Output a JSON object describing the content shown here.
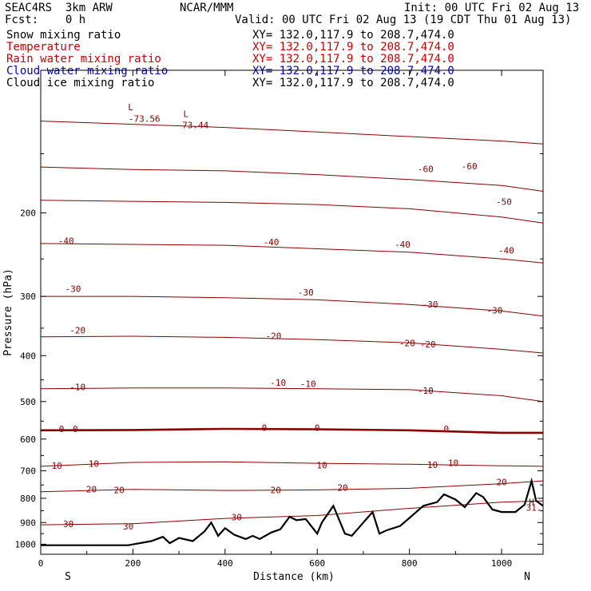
{
  "header": {
    "model": "SEAC4RS  3km ARW",
    "org": "NCAR/MMM",
    "init": "Init: 00 UTC Fri 02 Aug 13",
    "fcst": "Fcst:    0 h",
    "valid": "Valid: 00 UTC Fri 02 Aug 13 (19 CDT Thu 01 Aug 13)",
    "fields": [
      {
        "name": "Snow mixing ratio",
        "coords": "XY= 132.0,117.9 to 208.7,474.0",
        "color": "#000000"
      },
      {
        "name": "Temperature",
        "coords": "XY= 132.0,117.9 to 208.7,474.0",
        "color": "#cc0000"
      },
      {
        "name": "Rain water mixing ratio",
        "coords": "XY= 132.0,117.9 to 208.7,474.0",
        "color": "#cc0000"
      },
      {
        "name": "Cloud water mixing ratio",
        "coords": "XY= 132.0,117.9 to 208.7,474.0",
        "color": "#0000cc"
      },
      {
        "name": "Cloud ice mixing ratio",
        "coords": "XY= 132.0,117.9 to 208.7,474.0",
        "color": "#000000"
      }
    ]
  },
  "chart_data": {
    "type": "line",
    "xlabel": "Distance (km)",
    "ylabel": "Pressure (hPa)",
    "xlim": [
      0,
      1090
    ],
    "ylim": [
      1050,
      100
    ],
    "y_scale": "log",
    "x_ticks": [
      0,
      200,
      400,
      600,
      800,
      1000
    ],
    "y_ticks": [
      200,
      300,
      400,
      500,
      600,
      700,
      800,
      900,
      1000
    ],
    "x_end_labels": {
      "left": "S",
      "right": "N"
    },
    "line_color": "#8b0000",
    "isotherms": [
      {
        "value": -60,
        "x": [
          0,
          200,
          400,
          600,
          800,
          1000,
          1090
        ],
        "p": [
          160,
          162,
          163,
          166,
          170,
          175,
          180
        ]
      },
      {
        "value": -50,
        "x": [
          0,
          200,
          400,
          600,
          800,
          1000,
          1090
        ],
        "p": [
          188,
          189,
          190,
          192,
          196,
          204,
          210
        ]
      },
      {
        "value": -40,
        "x": [
          0,
          200,
          400,
          600,
          800,
          1000,
          1090
        ],
        "p": [
          232,
          233,
          234,
          238,
          242,
          250,
          255
        ]
      },
      {
        "value": -30,
        "x": [
          0,
          200,
          400,
          600,
          800,
          1000,
          1090
        ],
        "p": [
          300,
          300,
          302,
          305,
          312,
          322,
          330
        ]
      },
      {
        "value": -20,
        "x": [
          0,
          200,
          400,
          600,
          800,
          1000,
          1090
        ],
        "p": [
          365,
          364,
          366,
          370,
          376,
          388,
          395
        ]
      },
      {
        "value": -10,
        "x": [
          0,
          200,
          400,
          600,
          800,
          1000,
          1090
        ],
        "p": [
          470,
          468,
          468,
          470,
          472,
          486,
          500
        ]
      },
      {
        "value": 0,
        "x": [
          0,
          200,
          400,
          600,
          800,
          1000,
          1090
        ],
        "p": [
          575,
          574,
          571,
          572,
          575,
          582,
          582
        ]
      },
      {
        "value": 10,
        "x": [
          0,
          200,
          400,
          600,
          800,
          1000,
          1090
        ],
        "p": [
          685,
          672,
          670,
          675,
          678,
          683,
          685
        ]
      },
      {
        "value": 20,
        "x": [
          0,
          200,
          400,
          600,
          800,
          1000,
          1090
        ],
        "p": [
          775,
          766,
          770,
          768,
          762,
          745,
          735
        ]
      },
      {
        "value": 30,
        "x": [
          0,
          200,
          400,
          600,
          800,
          1000,
          1090
        ],
        "p": [
          910,
          905,
          882,
          870,
          840,
          815,
          810
        ]
      }
    ],
    "tropopause_level": {
      "p": 130,
      "x": [
        0,
        200,
        400,
        600,
        800,
        1000,
        1090
      ],
      "pp": [
        128,
        130,
        132,
        135,
        138,
        141,
        143
      ]
    },
    "terrain": {
      "x": [
        0,
        150,
        190,
        240,
        265,
        280,
        300,
        330,
        355,
        370,
        385,
        400,
        420,
        445,
        460,
        475,
        500,
        520,
        540,
        555,
        575,
        600,
        610,
        635,
        650,
        660,
        675,
        700,
        720,
        735,
        750,
        780,
        800,
        830,
        860,
        875,
        900,
        920,
        945,
        960,
        980,
        1000,
        1030,
        1050,
        1065,
        1075,
        1090
      ],
      "p": [
        1005,
        1005,
        1005,
        985,
        965,
        995,
        970,
        985,
        940,
        900,
        960,
        925,
        955,
        975,
        960,
        975,
        945,
        930,
        875,
        890,
        885,
        950,
        900,
        830,
        900,
        950,
        960,
        900,
        855,
        950,
        935,
        915,
        880,
        830,
        815,
        785,
        805,
        835,
        780,
        795,
        845,
        855,
        855,
        825,
        735,
        810,
        830
      ]
    },
    "labels": [
      {
        "text": "-73.44",
        "x": 330,
        "p": 131
      },
      {
        "text": "-73.56",
        "x": 225,
        "p": 127
      },
      {
        "text": "L",
        "x": 315,
        "p": 124
      },
      {
        "text": "L",
        "x": 195,
        "p": 120
      },
      {
        "text": "-60",
        "x": 835,
        "p": 162
      },
      {
        "text": "-60",
        "x": 930,
        "p": 160
      },
      {
        "text": "-50",
        "x": 1005,
        "p": 190
      },
      {
        "text": "-40",
        "x": 55,
        "p": 230
      },
      {
        "text": "-40",
        "x": 500,
        "p": 231
      },
      {
        "text": "-40",
        "x": 785,
        "p": 234
      },
      {
        "text": "-40",
        "x": 1010,
        "p": 241
      },
      {
        "text": "-30",
        "x": 70,
        "p": 290
      },
      {
        "text": "-30",
        "x": 575,
        "p": 295
      },
      {
        "text": "-30",
        "x": 845,
        "p": 313
      },
      {
        "text": "-30",
        "x": 985,
        "p": 322
      },
      {
        "text": "-20",
        "x": 80,
        "p": 355
      },
      {
        "text": "-20",
        "x": 505,
        "p": 365
      },
      {
        "text": "-20",
        "x": 795,
        "p": 378
      },
      {
        "text": "-20",
        "x": 840,
        "p": 380
      },
      {
        "text": "-10",
        "x": 80,
        "p": 468
      },
      {
        "text": "-10",
        "x": 515,
        "p": 458
      },
      {
        "text": "-10",
        "x": 580,
        "p": 460
      },
      {
        "text": "-10",
        "x": 835,
        "p": 476
      },
      {
        "text": "0",
        "x": 45,
        "p": 573
      },
      {
        "text": "0",
        "x": 75,
        "p": 573
      },
      {
        "text": "0",
        "x": 485,
        "p": 570
      },
      {
        "text": "0",
        "x": 600,
        "p": 570
      },
      {
        "text": "0",
        "x": 880,
        "p": 573
      },
      {
        "text": "10",
        "x": 35,
        "p": 685
      },
      {
        "text": "10",
        "x": 115,
        "p": 678
      },
      {
        "text": "10",
        "x": 610,
        "p": 684
      },
      {
        "text": "10",
        "x": 850,
        "p": 682
      },
      {
        "text": "10",
        "x": 895,
        "p": 676
      },
      {
        "text": "20",
        "x": 110,
        "p": 768
      },
      {
        "text": "20",
        "x": 170,
        "p": 772
      },
      {
        "text": "20",
        "x": 510,
        "p": 772
      },
      {
        "text": "20",
        "x": 655,
        "p": 762
      },
      {
        "text": "20",
        "x": 1000,
        "p": 742
      },
      {
        "text": "30",
        "x": 60,
        "p": 910
      },
      {
        "text": "30",
        "x": 190,
        "p": 920
      },
      {
        "text": "30",
        "x": 425,
        "p": 880
      },
      {
        "text": "H",
        "x": 1065,
        "p": 818
      },
      {
        "text": "31.",
        "x": 1070,
        "p": 840
      }
    ]
  }
}
